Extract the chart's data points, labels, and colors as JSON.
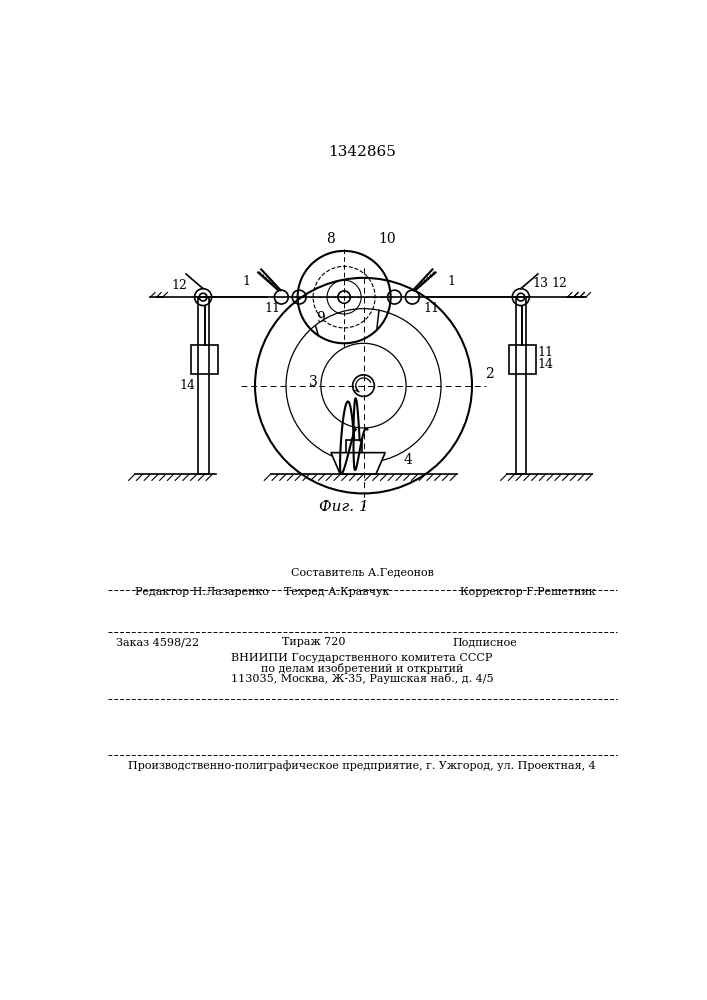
{
  "patent_number": "1342865",
  "fig_caption": "Фиг. 1",
  "bg_color": "#ffffff",
  "line_color": "#000000",
  "lw": 1.2,
  "footer": {
    "sestavitel": "Составитель А.Гедеонов",
    "redaktor": "Редактор Н.Лазаренко",
    "tekhred": "Техред А.Кравчук",
    "korrektor": "Корректор Г.Решетник",
    "zakaz": "Заказ 4598/22",
    "tirazh": "Тираж 720",
    "podpisnoe": "Подписное",
    "vniipи1": "ВНИИПИ Государственного комитета СССР",
    "vniipи2": "по делам изобретений и открытий",
    "vniipи3": "113035, Москва, Ж-35, Раушская наб., д. 4/5",
    "printer": "Производственно-полиграфическое предприятие, г. Ужгород, ул. Проектная, 4"
  }
}
